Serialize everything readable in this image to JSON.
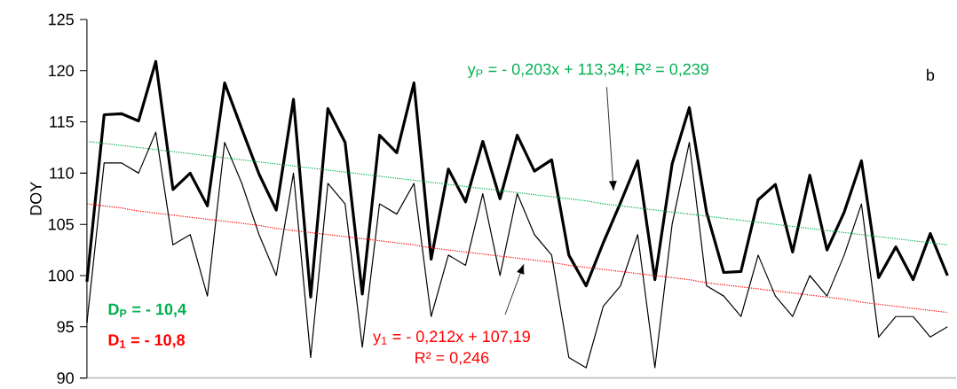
{
  "chart_data": {
    "type": "line",
    "ylabel": "DOY",
    "categories": [
      null,
      null,
      null,
      null,
      null,
      null,
      null,
      null,
      null,
      null,
      null,
      null,
      null,
      null,
      null,
      null,
      null,
      null,
      null,
      null,
      null,
      null,
      null,
      null,
      null,
      null,
      null,
      null,
      null,
      null,
      null,
      null,
      null,
      null,
      null,
      null,
      null,
      null,
      null,
      null,
      null,
      null,
      null,
      null,
      null,
      null,
      null,
      null,
      null,
      null,
      null
    ],
    "series": [
      {
        "color": "#000000",
        "values": [
          99.4,
          115.7,
          115.8,
          115.1,
          120.9,
          108.4,
          110.0,
          106.8,
          118.8,
          114.3,
          109.9,
          106.4,
          117.2,
          97.9,
          116.3,
          113.0,
          98.2,
          113.7,
          112.0,
          118.8,
          101.6,
          110.4,
          107.2,
          113.1,
          107.5,
          113.7,
          110.2,
          111.3,
          102.0,
          99.0,
          103.2,
          107.1,
          111.2,
          99.6,
          110.9,
          116.4,
          106.2,
          100.3,
          100.4,
          107.4,
          108.9,
          102.3,
          109.8,
          102.5,
          106.2,
          111.2,
          99.8,
          102.8,
          99.6,
          104.1,
          100.0
        ]
      },
      {
        "color": "#000000",
        "values": [
          95.4,
          111,
          111,
          110,
          114,
          103,
          104,
          98,
          113,
          109,
          104,
          100,
          110,
          92,
          109,
          107,
          93,
          107,
          106,
          109,
          96,
          102,
          101,
          108,
          100,
          108,
          104,
          102,
          92,
          91,
          97,
          99,
          104,
          91,
          105,
          113,
          99,
          98,
          96,
          102,
          98,
          96,
          100,
          98,
          102,
          107,
          94,
          96,
          96,
          94,
          95
        ]
      },
      {
        "color": "#00b050",
        "line_style": "dotted",
        "values": [
          113.1,
          112.9,
          112.7,
          112.5,
          112.3,
          112.1,
          111.9,
          111.7,
          111.5,
          111.3,
          111.1,
          110.9,
          110.7,
          110.5,
          110.3,
          110.1,
          109.9,
          109.7,
          109.5,
          109.3,
          109.1,
          108.9,
          108.7,
          108.5,
          108.3,
          108.1,
          107.9,
          107.7,
          107.5,
          107.3,
          107.0,
          106.8,
          106.6,
          106.4,
          106.2,
          106.0,
          105.8,
          105.6,
          105.4,
          105.2,
          105.0,
          104.8,
          104.6,
          104.4,
          104.2,
          104.0,
          103.8,
          103.6,
          103.4,
          103.2,
          103.0
        ]
      },
      {
        "color": "#ff0000",
        "line_style": "dotted",
        "values": [
          107.0,
          106.8,
          106.6,
          106.3,
          106.1,
          105.9,
          105.7,
          105.5,
          105.3,
          105.1,
          104.9,
          104.6,
          104.4,
          104.2,
          104.0,
          103.8,
          103.6,
          103.4,
          103.2,
          103.0,
          102.7,
          102.5,
          102.3,
          102.1,
          101.9,
          101.7,
          101.5,
          101.3,
          101.0,
          100.8,
          100.6,
          100.4,
          100.2,
          100.0,
          99.8,
          99.6,
          99.3,
          99.1,
          98.9,
          98.7,
          98.5,
          98.3,
          98.1,
          97.9,
          97.7,
          97.4,
          97.2,
          97.0,
          96.8,
          96.6,
          96.4
        ]
      }
    ],
    "ylim": [
      90,
      125
    ],
    "yticks": [
      90,
      95,
      100,
      105,
      110,
      115,
      120,
      125
    ],
    "tick_labels": "y",
    "grid": false,
    "marker": "none",
    "line_style": "solid",
    "annotations": [
      "y$_{P}$ = - 0,203x + 113,34;  R² = 0,239",
      "y$_{1}$ = - 0,212x + 107,19",
      "R² = 0,246",
      "**D$_{P}$ =  - 10,4**",
      "**D$_{1}$ =  -  10,8**",
      "b"
    ]
  }
}
